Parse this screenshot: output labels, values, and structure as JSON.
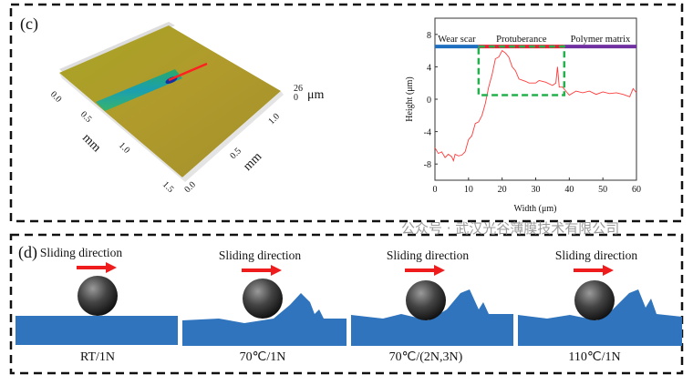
{
  "panel_c": {
    "label": "(c)",
    "surface": {
      "axis_left_unit": "mm",
      "axis_right_unit": "mm",
      "z_unit": "μm",
      "left_ticks": [
        "0.0",
        "0.5",
        "1.0",
        "1.5"
      ],
      "right_ticks": [
        "0.0",
        "0.5",
        "1.0"
      ],
      "z_ticks": [
        "26",
        "0"
      ]
    }
  },
  "chart_data": {
    "type": "line",
    "xlabel": "Width (μm)",
    "ylabel": "Height (μm)",
    "xlim": [
      0,
      60
    ],
    "ylim": [
      -10,
      10
    ],
    "xticks": [
      0,
      10,
      20,
      30,
      40,
      50,
      60
    ],
    "yticks": [
      -8,
      -4,
      0,
      4,
      8
    ],
    "grid": false,
    "series": [
      {
        "color": "#ff3b3b",
        "x": [
          0,
          1,
          2,
          3,
          4,
          5,
          5.5,
          6,
          7,
          8,
          9,
          10,
          11,
          12,
          13,
          14,
          15,
          16,
          17,
          18,
          19,
          20,
          21,
          22,
          23,
          24,
          25,
          27,
          28,
          30,
          31,
          33,
          35,
          36,
          36.5,
          37,
          38,
          39,
          40,
          42,
          44,
          46,
          48,
          50,
          52,
          54,
          56,
          58,
          59,
          60
        ],
        "y": [
          -6,
          -6.7,
          -6.5,
          -7.2,
          -6.8,
          -7.1,
          -7.6,
          -6.8,
          -7,
          -6.9,
          -6.5,
          -5,
          -4.5,
          -3,
          -2.8,
          -2,
          -0.5,
          1.5,
          3,
          5,
          5.2,
          6,
          5.7,
          5.2,
          4,
          3.5,
          2.5,
          2.2,
          2,
          2,
          2.3,
          2.1,
          1.7,
          2,
          4,
          1.5,
          1.5,
          1,
          0.5,
          1,
          0.8,
          1,
          0.6,
          0.9,
          0.7,
          0.8,
          0.6,
          0.3,
          1.3,
          0.8
        ]
      }
    ],
    "regions": [
      {
        "name": "Wear scar",
        "from": 0,
        "to": 13,
        "color": "#1f6fc1"
      },
      {
        "name": "Protuberance",
        "from": 13,
        "to": 38.5,
        "color": "#e8203a"
      },
      {
        "name": "Polymer matrix",
        "from": 38.5,
        "to": 60,
        "color": "#7030a0"
      }
    ],
    "region_bar_y": 6.5,
    "highlight_box": {
      "x": [
        13,
        38.5
      ],
      "y": [
        0.5,
        6.5
      ],
      "color": "#22b14c"
    }
  },
  "panel_d": {
    "label": "(d)",
    "arrow_label": "Sliding direction",
    "conditions": [
      "RT/1N",
      "70℃/1N",
      "70℃/(2N,3N)",
      "110℃/1N"
    ],
    "colors": {
      "substrate": "#2f74bd",
      "arrow": "#ee1c1c"
    }
  },
  "watermark": "公众号 · 武汉光谷薄膜技术有限公司"
}
